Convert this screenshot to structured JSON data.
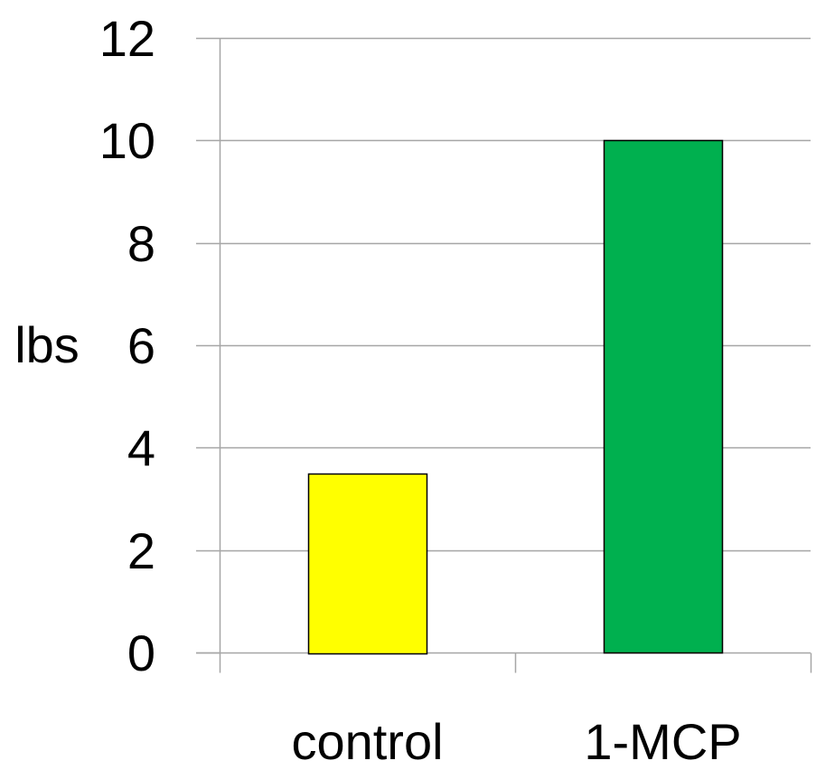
{
  "chart_data": {
    "type": "bar",
    "title": "",
    "xlabel": "",
    "ylabel": "lbs",
    "categories": [
      "control",
      "1-MCP"
    ],
    "values": [
      3.5,
      10
    ],
    "colors": [
      "#ffff00",
      "#00b04f"
    ],
    "bar_border_color": "#000000",
    "ylim": [
      0,
      12
    ],
    "yticks": [
      0,
      2,
      4,
      6,
      8,
      10,
      12
    ],
    "ytick_labels": [
      "0",
      "2",
      "4",
      "6",
      "8",
      "10",
      "12"
    ],
    "grid": true,
    "grid_color": "#a6a6a6",
    "legend": "none"
  }
}
